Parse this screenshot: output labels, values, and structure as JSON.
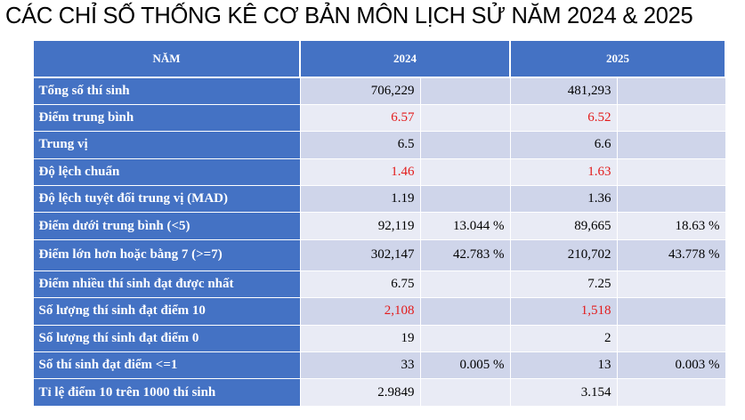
{
  "title": "CÁC CHỈ SỐ THỐNG KÊ CƠ BẢN MÔN LỊCH SỬ NĂM 2024 & 2025",
  "header": {
    "col_label": "NĂM",
    "col_2024": "2024",
    "col_2025": "2025"
  },
  "rows": [
    {
      "label": "Tổng số thí sinh",
      "v2024": "706,229",
      "p2024": "",
      "v2025": "481,293",
      "p2025": ""
    },
    {
      "label": "Điểm trung bình",
      "v2024": "6.57",
      "p2024": "",
      "v2025": "6.52",
      "p2025": ""
    },
    {
      "label": "Trung vị",
      "v2024": "6.5",
      "p2024": "",
      "v2025": "6.6",
      "p2025": ""
    },
    {
      "label": "Độ lệch chuẩn",
      "v2024": "1.46",
      "p2024": "",
      "v2025": "1.63",
      "p2025": ""
    },
    {
      "label": "Độ lệch tuyệt đối trung vị (MAD)",
      "v2024": "1.19",
      "p2024": "",
      "v2025": "1.36",
      "p2025": ""
    },
    {
      "label": "Điểm dưới trung bình (<5)",
      "v2024": "92,119",
      "p2024": "13.044 %",
      "v2025": "89,665",
      "p2025": "18.63 %"
    },
    {
      "label": "Điểm lớn hơn hoặc bằng 7 (>=7)",
      "v2024": "302,147",
      "p2024": "42.783 %",
      "v2025": "210,702",
      "p2025": "43.778 %"
    },
    {
      "label": "Điểm nhiều thí sinh đạt được nhất",
      "v2024": "6.75",
      "p2024": "",
      "v2025": "7.25",
      "p2025": ""
    },
    {
      "label": "Số lượng thí sinh đạt điểm 10",
      "v2024": "2,108",
      "p2024": "",
      "v2025": "1,518",
      "p2025": ""
    },
    {
      "label": "Số lượng thí sinh đạt điểm 0",
      "v2024": "19",
      "p2024": "",
      "v2025": "2",
      "p2025": ""
    },
    {
      "label": "Số thí sinh đạt điểm <=1",
      "v2024": "33",
      "p2024": "0.005 %",
      "v2025": "13",
      "p2025": "0.003 %"
    },
    {
      "label": "Tỉ lệ điểm 10 trên 1000 thí sinh",
      "v2024": "2.9849",
      "p2024": "",
      "v2025": "3.154",
      "p2025": ""
    }
  ],
  "colors": {
    "header_bg": "#4472C4",
    "row_odd": "#CFD5EA",
    "row_even": "#E9EBF5",
    "highlight": "#e31b1b"
  }
}
